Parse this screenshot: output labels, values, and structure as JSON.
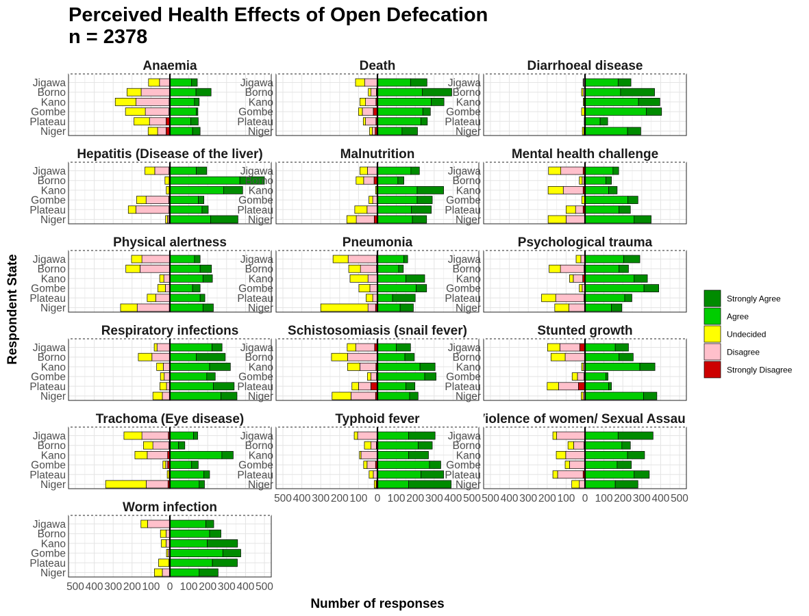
{
  "chart_data": {
    "type": "bar",
    "orientation": "horizontal-diverging",
    "title_line1": "Perceived Health Effects of Open Defecation",
    "title_line2": "n = 2378",
    "xlabel": "Number of responses",
    "ylabel": "Respondent State",
    "xlim": [
      -500,
      500
    ],
    "xticks": [
      -500,
      -400,
      -300,
      -200,
      -100,
      0,
      100,
      200,
      300,
      400,
      500
    ],
    "xtick_labels": [
      "500",
      "400",
      "300",
      "200",
      "100",
      "0",
      "100",
      "200",
      "300",
      "400",
      "500"
    ],
    "states": [
      "Jigawa",
      "Borno",
      "Kano",
      "Gombe",
      "Plateau",
      "Niger"
    ],
    "legend": {
      "position": "right",
      "items": [
        {
          "name": "Strongly Agree",
          "color": "#008B00"
        },
        {
          "name": "Agree",
          "color": "#00CD00"
        },
        {
          "name": "Undecided",
          "color": "#FFFF00"
        },
        {
          "name": "Disagree",
          "color": "#FFC0CB"
        },
        {
          "name": "Strongly Disagree",
          "color": "#CD0000"
        }
      ]
    },
    "value_order": [
      "Strongly Disagree",
      "Disagree",
      "Undecided",
      "Agree",
      "Strongly Agree"
    ],
    "panels": [
      {
        "title": "Anaemia",
        "rows": [
          [
            0,
            55,
            58,
            115,
            30
          ],
          [
            0,
            152,
            75,
            138,
            80
          ],
          [
            4,
            175,
            110,
            130,
            25
          ],
          [
            5,
            125,
            105,
            140,
            8
          ],
          [
            20,
            88,
            82,
            110,
            40
          ],
          [
            20,
            45,
            50,
            120,
            40
          ]
        ]
      },
      {
        "title": "Death",
        "rows": [
          [
            0,
            68,
            48,
            175,
            87
          ],
          [
            6,
            28,
            14,
            238,
            155
          ],
          [
            8,
            55,
            30,
            285,
            67
          ],
          [
            22,
            58,
            20,
            240,
            40
          ],
          [
            8,
            55,
            12,
            230,
            34
          ],
          [
            12,
            15,
            15,
            130,
            82
          ]
        ]
      },
      {
        "title": "Diarrhoeal disease",
        "rows": [
          [
            0,
            8,
            2,
            175,
            68
          ],
          [
            0,
            10,
            8,
            188,
            180
          ],
          [
            0,
            5,
            4,
            283,
            113
          ],
          [
            3,
            0,
            15,
            325,
            80
          ],
          [
            0,
            2,
            2,
            80,
            40
          ],
          [
            2,
            4,
            8,
            225,
            70
          ]
        ]
      },
      {
        "title": "Hepatitis (Disease of the liver)",
        "rows": [
          [
            5,
            75,
            52,
            140,
            55
          ],
          [
            2,
            2,
            22,
            370,
            130
          ],
          [
            2,
            2,
            15,
            285,
            100
          ],
          [
            6,
            120,
            50,
            150,
            30
          ],
          [
            5,
            175,
            40,
            170,
            33
          ],
          [
            5,
            8,
            10,
            216,
            144
          ]
        ]
      },
      {
        "title": "Malnutrition",
        "rows": [
          [
            3,
            50,
            40,
            177,
            45
          ],
          [
            18,
            55,
            40,
            108,
            32
          ],
          [
            2,
            2,
            6,
            210,
            140
          ],
          [
            0,
            25,
            20,
            210,
            80
          ],
          [
            0,
            55,
            65,
            180,
            105
          ],
          [
            17,
            95,
            50,
            185,
            75
          ]
        ]
      },
      {
        "title": "Mental health challenge",
        "rows": [
          [
            10,
            118,
            65,
            148,
            30
          ],
          [
            5,
            10,
            15,
            110,
            30
          ],
          [
            10,
            105,
            80,
            125,
            45
          ],
          [
            2,
            0,
            15,
            227,
            53
          ],
          [
            10,
            40,
            50,
            180,
            60
          ],
          [
            0,
            100,
            95,
            260,
            90
          ]
        ]
      },
      {
        "title": "Physical alertness",
        "rows": [
          [
            0,
            148,
            55,
            130,
            30
          ],
          [
            0,
            158,
            75,
            160,
            60
          ],
          [
            2,
            30,
            22,
            175,
            50
          ],
          [
            2,
            22,
            40,
            120,
            40
          ],
          [
            0,
            75,
            45,
            160,
            25
          ],
          [
            3,
            170,
            88,
            175,
            55
          ]
        ]
      },
      {
        "title": "Pneumonia",
        "rows": [
          [
            5,
            150,
            80,
            140,
            20
          ],
          [
            5,
            85,
            62,
            112,
            25
          ],
          [
            0,
            50,
            95,
            150,
            100
          ],
          [
            2,
            38,
            58,
            205,
            55
          ],
          [
            0,
            25,
            35,
            80,
            120
          ],
          [
            10,
            40,
            250,
            120,
            70
          ]
        ]
      },
      {
        "title": "Psychological trauma",
        "rows": [
          [
            2,
            20,
            25,
            205,
            85
          ],
          [
            5,
            125,
            60,
            180,
            50
          ],
          [
            12,
            50,
            20,
            260,
            70
          ],
          [
            0,
            15,
            15,
            312,
            78
          ],
          [
            5,
            150,
            75,
            210,
            38
          ],
          [
            0,
            85,
            75,
            140,
            55
          ]
        ]
      },
      {
        "title": "Respiratory infections",
        "rows": [
          [
            0,
            68,
            15,
            223,
            53
          ],
          [
            0,
            95,
            72,
            140,
            153
          ],
          [
            0,
            35,
            35,
            210,
            110
          ],
          [
            0,
            30,
            20,
            195,
            45
          ],
          [
            0,
            18,
            35,
            230,
            110
          ],
          [
            0,
            40,
            50,
            270,
            85
          ]
        ]
      },
      {
        "title": "Schistosomiasis (snail fever)",
        "rows": [
          [
            15,
            100,
            45,
            100,
            75
          ],
          [
            0,
            158,
            85,
            145,
            50
          ],
          [
            8,
            85,
            65,
            225,
            80
          ],
          [
            5,
            30,
            18,
            250,
            60
          ],
          [
            35,
            65,
            35,
            150,
            48
          ],
          [
            10,
            130,
            100,
            170,
            45
          ]
        ]
      },
      {
        "title": "Stunted growth",
        "rows": [
          [
            28,
            105,
            65,
            160,
            70
          ],
          [
            0,
            105,
            75,
            180,
            75
          ],
          [
            2,
            8,
            8,
            290,
            80
          ],
          [
            5,
            35,
            28,
            110,
            12
          ],
          [
            35,
            105,
            60,
            125,
            15
          ],
          [
            0,
            10,
            10,
            310,
            70
          ]
        ]
      },
      {
        "title": "Trachoma (Eye disease)",
        "rows": [
          [
            8,
            140,
            95,
            125,
            22
          ],
          [
            5,
            85,
            50,
            45,
            34
          ],
          [
            12,
            108,
            65,
            275,
            60
          ],
          [
            12,
            10,
            15,
            115,
            35
          ],
          [
            2,
            2,
            10,
            180,
            30
          ],
          [
            10,
            115,
            215,
            155,
            28
          ]
        ]
      },
      {
        "title": "Typhoid fever",
        "rows": [
          [
            0,
            105,
            18,
            165,
            140
          ],
          [
            6,
            28,
            35,
            215,
            75
          ],
          [
            2,
            85,
            8,
            165,
            105
          ],
          [
            10,
            45,
            18,
            275,
            60
          ],
          [
            2,
            20,
            22,
            230,
            120
          ],
          [
            7,
            0,
            10,
            165,
            225
          ]
        ]
      },
      {
        "title": "Violence of women/ Sexual Assault",
        "rows": [
          [
            0,
            150,
            20,
            175,
            185
          ],
          [
            5,
            55,
            30,
            195,
            45
          ],
          [
            2,
            100,
            50,
            225,
            90
          ],
          [
            2,
            80,
            23,
            170,
            75
          ],
          [
            10,
            135,
            25,
            260,
            80
          ],
          [
            0,
            30,
            40,
            160,
            120
          ]
        ]
      },
      {
        "title": "Worm infection",
        "rows": [
          [
            0,
            118,
            35,
            190,
            42
          ],
          [
            0,
            20,
            30,
            210,
            60
          ],
          [
            0,
            20,
            25,
            198,
            160
          ],
          [
            0,
            10,
            8,
            280,
            95
          ],
          [
            0,
            5,
            55,
            225,
            132
          ],
          [
            0,
            40,
            42,
            155,
            100
          ]
        ]
      }
    ]
  }
}
